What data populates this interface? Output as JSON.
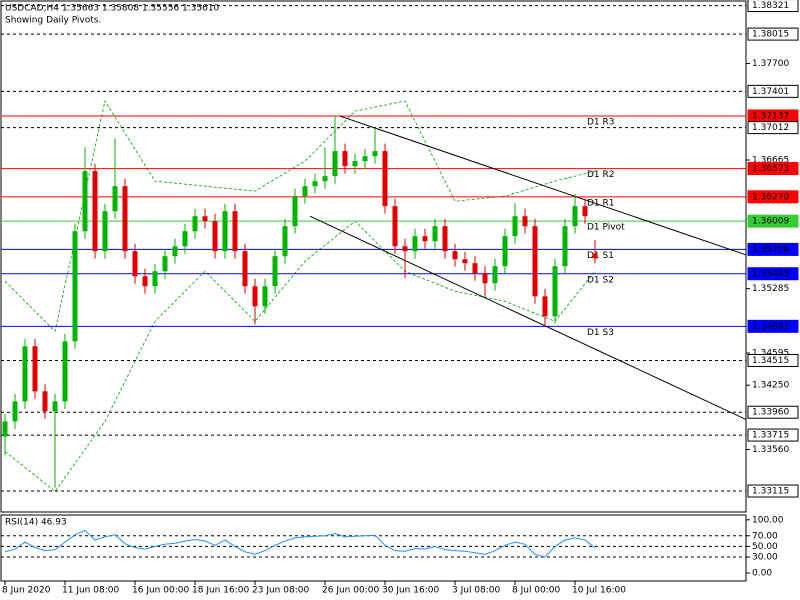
{
  "header": {
    "title": "USDCAD,H4  1.35663 1.35808 1.35556 1.35610",
    "note": "Showing Daily Pivots."
  },
  "chart_data": [
    {
      "type": "candlestick",
      "categories": [
        "8 Jun 2020",
        null,
        null,
        null,
        null,
        null,
        "11 Jun 08:00",
        null,
        null,
        null,
        null,
        null,
        null,
        "16 Jun 00:00",
        null,
        null,
        null,
        null,
        null,
        "18 Jun 16:00",
        null,
        null,
        null,
        null,
        null,
        "23 Jun 08:00",
        null,
        null,
        null,
        null,
        null,
        null,
        "26 Jun 00:00",
        null,
        null,
        null,
        null,
        null,
        "30 Jun 16:00",
        null,
        null,
        null,
        null,
        null,
        null,
        "3 Jul 08:00",
        null,
        null,
        null,
        null,
        null,
        "8 Jul 00:00",
        null,
        null,
        null,
        null,
        null,
        "10 Jul 16:00",
        null,
        null
      ],
      "open": [
        1.337,
        1.33862,
        1.34076,
        1.34667,
        1.34184,
        1.33969,
        1.34076,
        1.3472,
        1.35901,
        1.36545,
        1.35687,
        1.36116,
        1.36384,
        1.35687,
        1.35418,
        1.35311,
        1.35472,
        1.35633,
        1.3574,
        1.35901,
        1.36062,
        1.36009,
        1.35687,
        1.36116,
        1.35687,
        1.35311,
        1.35096,
        1.35311,
        1.35633,
        1.35955,
        1.36277,
        1.36384,
        1.36438,
        1.36492,
        1.3676,
        1.36599,
        1.36653,
        1.36706,
        1.3676,
        1.3617,
        1.3574,
        1.35687,
        1.35848,
        1.35794,
        1.35955,
        1.35687,
        1.35601,
        1.35558,
        1.3545,
        1.35343,
        1.35526,
        1.35848,
        1.36062,
        1.35955,
        1.35203,
        1.34989,
        1.35526,
        1.35955,
        1.3617,
        1.35663
      ],
      "high": [
        1.33942,
        1.34156,
        1.34747,
        1.34747,
        1.34264,
        1.34156,
        1.348,
        1.35981,
        1.368,
        1.36625,
        1.36196,
        1.369,
        1.36464,
        1.35767,
        1.35498,
        1.35552,
        1.35713,
        1.3582,
        1.35981,
        1.36142,
        1.36142,
        1.36089,
        1.36196,
        1.36196,
        1.35767,
        1.35391,
        1.35391,
        1.35713,
        1.36035,
        1.36357,
        1.36464,
        1.36518,
        1.368,
        1.37137,
        1.3684,
        1.36733,
        1.36786,
        1.37,
        1.3684,
        1.3625,
        1.3582,
        1.35928,
        1.35928,
        1.36035,
        1.36035,
        1.35767,
        1.35681,
        1.35638,
        1.3553,
        1.35606,
        1.35928,
        1.362,
        1.36142,
        1.36035,
        1.35283,
        1.35606,
        1.36035,
        1.363,
        1.3625,
        1.35808
      ],
      "low": [
        1.335,
        1.33782,
        1.33996,
        1.34104,
        1.33889,
        1.3315,
        1.33996,
        1.3464,
        1.35821,
        1.35607,
        1.35607,
        1.36036,
        1.35607,
        1.35338,
        1.35231,
        1.35231,
        1.35392,
        1.35553,
        1.3566,
        1.35821,
        1.35929,
        1.35607,
        1.35607,
        1.35607,
        1.35231,
        1.349,
        1.35016,
        1.35231,
        1.35553,
        1.35875,
        1.36197,
        1.36304,
        1.36358,
        1.36412,
        1.36519,
        1.36519,
        1.36573,
        1.36626,
        1.3609,
        1.3566,
        1.354,
        1.35607,
        1.35714,
        1.35714,
        1.35607,
        1.35521,
        1.35478,
        1.3537,
        1.352,
        1.35263,
        1.35446,
        1.35768,
        1.35875,
        1.35123,
        1.34881,
        1.34909,
        1.35446,
        1.35875,
        1.35982,
        1.35556
      ],
      "close": [
        1.33862,
        1.34076,
        1.34667,
        1.34184,
        1.33969,
        1.34076,
        1.3472,
        1.35901,
        1.36545,
        1.35687,
        1.36116,
        1.36384,
        1.35687,
        1.35418,
        1.35311,
        1.35472,
        1.35633,
        1.3574,
        1.35901,
        1.36062,
        1.36009,
        1.35687,
        1.36116,
        1.35687,
        1.35311,
        1.35096,
        1.35311,
        1.35633,
        1.35955,
        1.36277,
        1.36384,
        1.36438,
        1.36492,
        1.3676,
        1.36599,
        1.36653,
        1.36706,
        1.3676,
        1.3617,
        1.3574,
        1.35687,
        1.35848,
        1.35794,
        1.35955,
        1.35687,
        1.35601,
        1.35558,
        1.3545,
        1.35343,
        1.35526,
        1.35848,
        1.36062,
        1.35955,
        1.35203,
        1.34989,
        1.35526,
        1.35955,
        1.3617,
        1.36062,
        1.3561
      ],
      "up_color": "#00b400",
      "down_color": "#e00000",
      "ylim": [
        1.3289,
        1.3837
      ],
      "yticks": [
        {
          "value": 1.377,
          "label": "1.37700"
        },
        1.36665,
        1.35285,
        1.34595,
        {
          "value": 1.3425,
          "label": "1.34250"
        },
        {
          "value": 1.3356,
          "label": "1.33560"
        }
      ],
      "levels": [
        {
          "value": 1.38321,
          "color": "#000000",
          "style": "dashed"
        },
        {
          "value": 1.38015,
          "color": "#000000",
          "style": "dashed"
        },
        {
          "value": 1.37401,
          "color": "#000000",
          "style": "dashed"
        },
        {
          "value": 1.37137,
          "color": "#ff0000",
          "style": "solid",
          "label": "D1 R3"
        },
        {
          "value": 1.37012,
          "color": "#000000",
          "style": "dashed"
        },
        {
          "value": 1.36573,
          "color": "#ff0000",
          "style": "solid",
          "label": "D1 R2"
        },
        {
          "value": 1.3627,
          "value_label": "1.36270",
          "color": "#ff0000",
          "style": "solid",
          "label": "D1 R1"
        },
        {
          "value": 1.36009,
          "color": "#32cd32",
          "style": "solid",
          "label": "D1 Pivot"
        },
        {
          "value": 1.35706,
          "color": "#0000ff",
          "style": "solid",
          "label": "D1 S1"
        },
        {
          "value": 1.35445,
          "color": "#0000ff",
          "style": "solid",
          "label": "D1 S2"
        },
        {
          "value": 1.34881,
          "color": "#0000ff",
          "style": "solid",
          "label": "D1 S3"
        },
        {
          "value": 1.34515,
          "color": "#000000",
          "style": "dashed"
        },
        {
          "value": 1.3396,
          "value_label": "1.33960",
          "color": "#000000",
          "style": "dashed"
        },
        {
          "value": 1.33715,
          "color": "#000000",
          "style": "dashed"
        },
        {
          "value": 1.33115,
          "color": "#000000",
          "style": "dashed"
        }
      ],
      "bands": {
        "color": "#00a000",
        "x": [
          0,
          5,
          10,
          15,
          20,
          25,
          30,
          35,
          40,
          45,
          50,
          55,
          59
        ],
        "upper": [
          1.35365,
          1.34828,
          1.37297,
          1.36438,
          1.36384,
          1.36331,
          1.36653,
          1.37189,
          1.37297,
          1.36223,
          1.36277,
          1.36438,
          1.36545
        ],
        "lower": [
          1.3354,
          1.3311,
          1.33862,
          1.34935,
          1.35472,
          1.34935,
          1.35579,
          1.36009,
          1.35472,
          1.35257,
          1.3515,
          1.34935,
          1.35472
        ]
      },
      "trendlines": [
        {
          "x": [
            33.5,
            74.5
          ],
          "y": [
            1.37136,
            1.35633
          ]
        },
        {
          "x": [
            30.5,
            74.5
          ],
          "y": [
            1.36062,
            1.33862
          ]
        }
      ],
      "grid": false
    },
    {
      "type": "line",
      "title": "RSI(14) 46.93",
      "color": "#1e90ff",
      "values": [
        40,
        45,
        58,
        48,
        42,
        44,
        58,
        72,
        80,
        62,
        68,
        72,
        55,
        48,
        45,
        50,
        54,
        56,
        60,
        63,
        60,
        52,
        62,
        50,
        40,
        35,
        42,
        52,
        60,
        66,
        68,
        69,
        70,
        74,
        68,
        69,
        70,
        71,
        52,
        42,
        41,
        46,
        45,
        50,
        44,
        42,
        41,
        38,
        35,
        42,
        52,
        58,
        54,
        35,
        30,
        50,
        62,
        66,
        62,
        46.93
      ],
      "ylim": [
        -15,
        109
      ],
      "yticks": [
        {
          "value": 100,
          "label": "100.00"
        },
        {
          "value": 70,
          "label": "70.00"
        },
        {
          "value": 50,
          "label": "50.00"
        },
        {
          "value": 30,
          "label": "30.00"
        },
        {
          "value": 0,
          "label": "0.00"
        }
      ],
      "levels": [
        70,
        50,
        30
      ]
    }
  ]
}
